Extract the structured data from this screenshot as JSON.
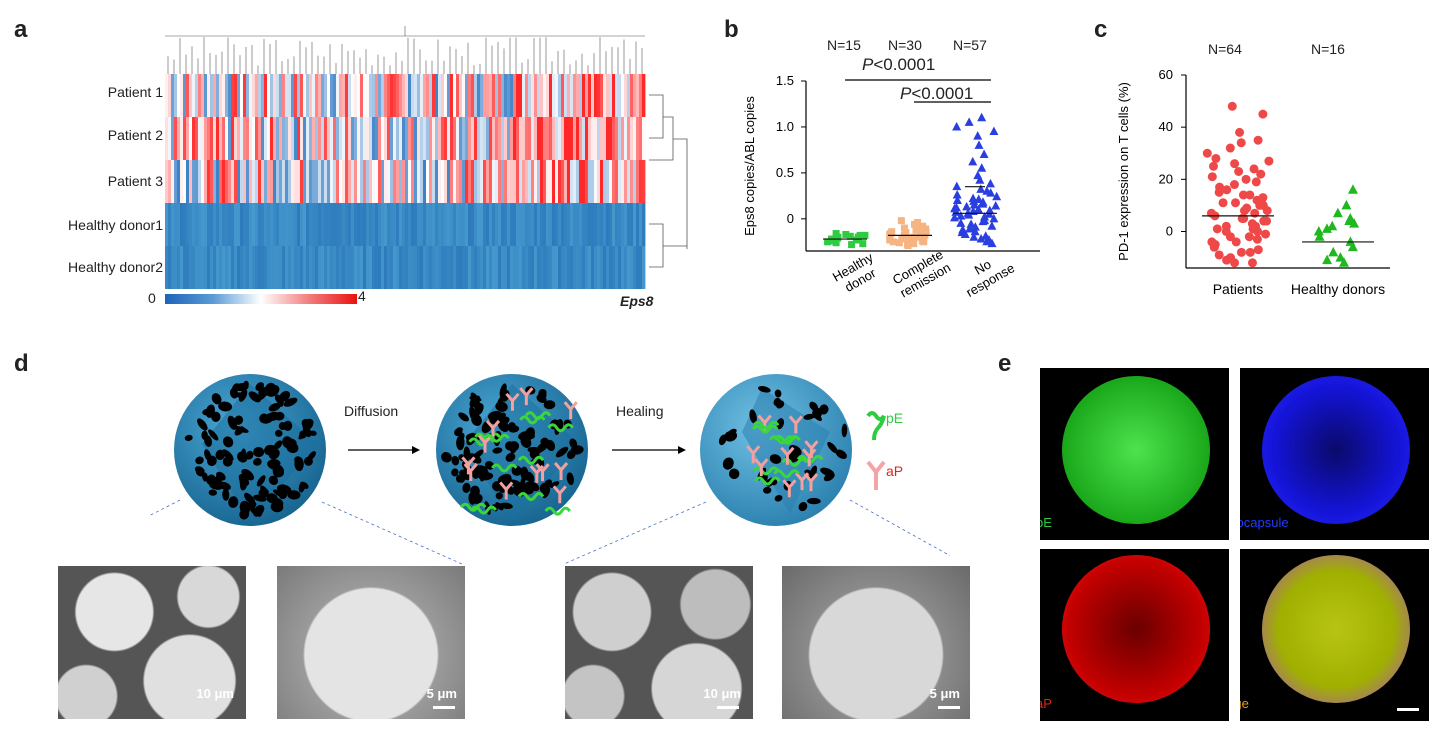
{
  "panels": {
    "a": "a",
    "b": "b",
    "c": "c",
    "d": "d",
    "e": "e"
  },
  "panel_a": {
    "rows": [
      "Patient 1",
      "Patient 2",
      "Patient 3",
      "Healthy donor1",
      "Healthy donor2"
    ],
    "scale_min": "0",
    "scale_max": "4",
    "gene_label": "Eps8"
  },
  "panel_b": {
    "counts": [
      "N=15",
      "N=30",
      "N=57"
    ],
    "p1_italic": "P",
    "p1_rest": "<0.0001",
    "p2_italic": "P",
    "p2_rest": "<0.0001"
  },
  "panel_c": {
    "counts": [
      "N=64",
      "N=16"
    ]
  },
  "panel_d": {
    "step1": "Diffusion",
    "step2": "Healing",
    "legend": {
      "pE": "pE",
      "aP": "aP"
    },
    "scales": [
      "10 μm",
      "5 μm",
      "10 μm",
      "5 μm"
    ]
  },
  "panel_e": {
    "channels": [
      "pE",
      "Microcapsule",
      "aP",
      "Merge"
    ]
  },
  "chart_data": [
    {
      "type": "scatter",
      "panel": "b",
      "categories": [
        "Healthy donor",
        "Complete remission",
        "No response"
      ],
      "ylabel": "Eps8 copies/ABL copies",
      "yticks": [
        "0",
        "0.5",
        "1.0",
        "1.5"
      ],
      "ylim": [
        -0.35,
        1.5
      ],
      "series": [
        {
          "values": [
            -0.28,
            -0.27,
            -0.26,
            -0.25,
            -0.24,
            -0.23,
            -0.22,
            -0.21,
            -0.2,
            -0.2,
            -0.19,
            -0.18,
            -0.18,
            -0.17,
            -0.16
          ]
        },
        {
          "values": [
            -0.29,
            -0.28,
            -0.27,
            -0.26,
            -0.25,
            -0.25,
            -0.24,
            -0.23,
            -0.22,
            -0.22,
            -0.21,
            -0.2,
            -0.2,
            -0.19,
            -0.18,
            -0.18,
            -0.17,
            -0.16,
            -0.15,
            -0.14,
            -0.14,
            -0.13,
            -0.12,
            -0.11,
            -0.1,
            -0.09,
            -0.08,
            -0.06,
            -0.04,
            -0.02
          ]
        },
        {
          "values": [
            -0.27,
            -0.25,
            -0.23,
            -0.22,
            -0.2,
            -0.19,
            -0.17,
            -0.15,
            -0.14,
            -0.12,
            -0.11,
            -0.09,
            -0.08,
            -0.06,
            -0.05,
            -0.03,
            -0.02,
            0.0,
            0.01,
            0.02,
            0.03,
            0.04,
            0.05,
            0.06,
            0.07,
            0.08,
            0.09,
            0.1,
            0.11,
            0.12,
            0.13,
            0.14,
            0.15,
            0.16,
            0.18,
            0.19,
            0.2,
            0.21,
            0.22,
            0.24,
            0.26,
            0.28,
            0.3,
            0.32,
            0.35,
            0.38,
            0.42,
            0.47,
            0.55,
            0.62,
            0.7,
            0.8,
            0.9,
            0.95,
            1.0,
            1.05,
            1.1
          ]
        }
      ],
      "means": [
        -0.22,
        -0.18,
        0.06
      ],
      "sd_upper": [
        null,
        null,
        0.35
      ]
    },
    {
      "type": "scatter",
      "panel": "c",
      "categories": [
        "Patients",
        "Healthy donors"
      ],
      "ylabel": "PD-1 expression on T cells (%)",
      "yticks": [
        "0",
        "20",
        "40",
        "60"
      ],
      "ylim": [
        -14,
        60
      ],
      "series": [
        {
          "values": [
            48,
            45,
            38,
            35,
            34,
            32,
            30,
            28,
            27,
            26,
            25,
            24,
            23,
            22,
            21,
            20,
            19,
            18,
            17,
            16,
            15,
            14,
            13,
            12,
            11,
            10,
            9,
            8,
            7,
            6,
            5,
            4,
            3,
            2,
            1,
            0,
            -1,
            -2,
            -3,
            -4,
            -5,
            -6,
            -7,
            -8,
            -9,
            -10,
            -11,
            -12,
            14,
            12,
            11,
            10,
            8,
            7,
            5,
            4,
            2,
            1,
            0,
            -2,
            -4,
            -6,
            -8,
            -12
          ]
        },
        {
          "values": [
            16,
            10,
            7,
            5,
            4,
            3,
            2,
            1,
            0,
            -2,
            -4,
            -6,
            -8,
            -10,
            -11,
            -12
          ]
        }
      ],
      "means": [
        6,
        -4
      ]
    }
  ]
}
